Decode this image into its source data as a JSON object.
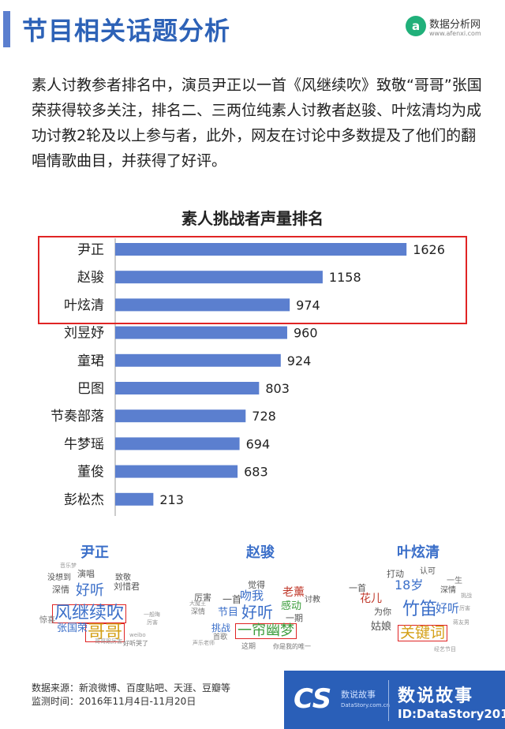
{
  "header": {
    "title": "节目相关话题分析",
    "logo_mark": "a",
    "logo_name": "数据分析网",
    "logo_url": "www.afenxi.com"
  },
  "intro": "素人讨教参者排名中，演员尹正以一首《风继续吹》致敬“哥哥”张国荣获得较多关注，排名二、三两位纯素人讨教者赵骏、叶炫清均为成功讨教2轮及以上参与者，此外，网友在讨论中多数提及了他们的翻唱情歌曲目，并获得了好评。",
  "chart_data": {
    "type": "bar",
    "orientation": "horizontal",
    "title": "素人挑战者声量排名",
    "categories": [
      "尹正",
      "赵骏",
      "叶炫清",
      "刘昱妤",
      "童珺",
      "巴图",
      "节奏部落",
      "牛梦瑶",
      "董俊",
      "彭松杰"
    ],
    "values": [
      1626,
      1158,
      974,
      960,
      924,
      803,
      728,
      694,
      683,
      213
    ],
    "xlim": [
      0,
      1700
    ],
    "highlighted_categories": [
      "尹正",
      "赵骏",
      "叶炫清"
    ],
    "bar_color": "#5b7fcf",
    "grid": false
  },
  "word_clouds": [
    {
      "name": "尹正",
      "words": [
        {
          "text": "风继续吹",
          "boxed": true,
          "color": "#3b6fc9",
          "size": 22
        },
        {
          "text": "哥哥",
          "boxed": true,
          "color": "#d4a017",
          "size": 22
        },
        {
          "text": "好听",
          "color": "#3b6fc9",
          "size": 18
        },
        {
          "text": "张国荣",
          "color": "#3b6fc9",
          "size": 13
        },
        {
          "text": "演唱",
          "color": "#555555",
          "size": 11
        },
        {
          "text": "刘惜君",
          "color": "#555555",
          "size": 11
        },
        {
          "text": "深情",
          "color": "#555555",
          "size": 11
        },
        {
          "text": "致敬",
          "color": "#555555",
          "size": 10
        },
        {
          "text": "没想到",
          "color": "#555555",
          "size": 10
        },
        {
          "text": "惊喜",
          "color": "#777777",
          "size": 10
        },
        {
          "text": "好听哭了",
          "color": "#777777",
          "size": 8
        },
        {
          "text": "weibo",
          "color": "#999999",
          "size": 7
        },
        {
          "text": "哥哥跟厉害",
          "color": "#999999",
          "size": 7
        },
        {
          "text": "厉害",
          "color": "#999999",
          "size": 7
        },
        {
          "text": "一般晦",
          "color": "#999999",
          "size": 7
        },
        {
          "text": "音乐梦",
          "color": "#999999",
          "size": 7
        }
      ]
    },
    {
      "name": "赵骏",
      "words": [
        {
          "text": "一帘幽梦",
          "boxed": true,
          "color": "#3b9c3b",
          "size": 18
        },
        {
          "text": "好听",
          "color": "#3b6fc9",
          "size": 20
        },
        {
          "text": "吻我",
          "color": "#3b6fc9",
          "size": 15
        },
        {
          "text": "老薰",
          "color": "#c0392b",
          "size": 14
        },
        {
          "text": "感动",
          "color": "#3b9c3b",
          "size": 13
        },
        {
          "text": "节目",
          "color": "#3b6fc9",
          "size": 13
        },
        {
          "text": "挑战",
          "color": "#3b6fc9",
          "size": 12
        },
        {
          "text": "一首",
          "color": "#555555",
          "size": 12
        },
        {
          "text": "厉害",
          "color": "#555555",
          "size": 11
        },
        {
          "text": "觉得",
          "color": "#555555",
          "size": 11
        },
        {
          "text": "一期",
          "color": "#555555",
          "size": 11
        },
        {
          "text": "讨教",
          "color": "#555555",
          "size": 10
        },
        {
          "text": "深情",
          "color": "#777777",
          "size": 9
        },
        {
          "text": "首歌",
          "color": "#777777",
          "size": 9
        },
        {
          "text": "这期",
          "color": "#777777",
          "size": 9
        },
        {
          "text": "你是我的唯一",
          "color": "#777777",
          "size": 8
        },
        {
          "text": "大魔王",
          "color": "#999999",
          "size": 7
        },
        {
          "text": "声乐老师",
          "color": "#999999",
          "size": 7
        }
      ]
    },
    {
      "name": "叶炫清",
      "words": [
        {
          "text": "关键词",
          "boxed": true,
          "color": "#d4a017",
          "size": 19
        },
        {
          "text": "竹笛",
          "color": "#3b6fc9",
          "size": 22
        },
        {
          "text": "18岁",
          "color": "#3b6fc9",
          "size": 16
        },
        {
          "text": "好听",
          "color": "#3b6fc9",
          "size": 15
        },
        {
          "text": "花儿",
          "color": "#c0392b",
          "size": 14
        },
        {
          "text": "姑娘",
          "color": "#555555",
          "size": 13
        },
        {
          "text": "为你",
          "color": "#555555",
          "size": 11
        },
        {
          "text": "一首",
          "color": "#555555",
          "size": 11
        },
        {
          "text": "打动",
          "color": "#555555",
          "size": 11
        },
        {
          "text": "认可",
          "color": "#555555",
          "size": 10
        },
        {
          "text": "深情",
          "color": "#555555",
          "size": 10
        },
        {
          "text": "一生",
          "color": "#777777",
          "size": 10
        },
        {
          "text": "厉害",
          "color": "#999999",
          "size": 7
        },
        {
          "text": "挑战",
          "color": "#999999",
          "size": 7
        },
        {
          "text": "蒋友男",
          "color": "#999999",
          "size": 7
        },
        {
          "text": "经艺节目",
          "color": "#999999",
          "size": 7
        }
      ]
    }
  ],
  "footer": {
    "source": "数据来源：新浪微博、百度贴吧、天涯、豆瓣等",
    "period": "监测时间：2016年11月4日-11月20日",
    "cs_mark": "CS",
    "cs_sub": "数说故事",
    "cs_url": "DataStory.com.cn",
    "brand_name": "数说故事",
    "brand_id": "ID:DataStory2015"
  }
}
